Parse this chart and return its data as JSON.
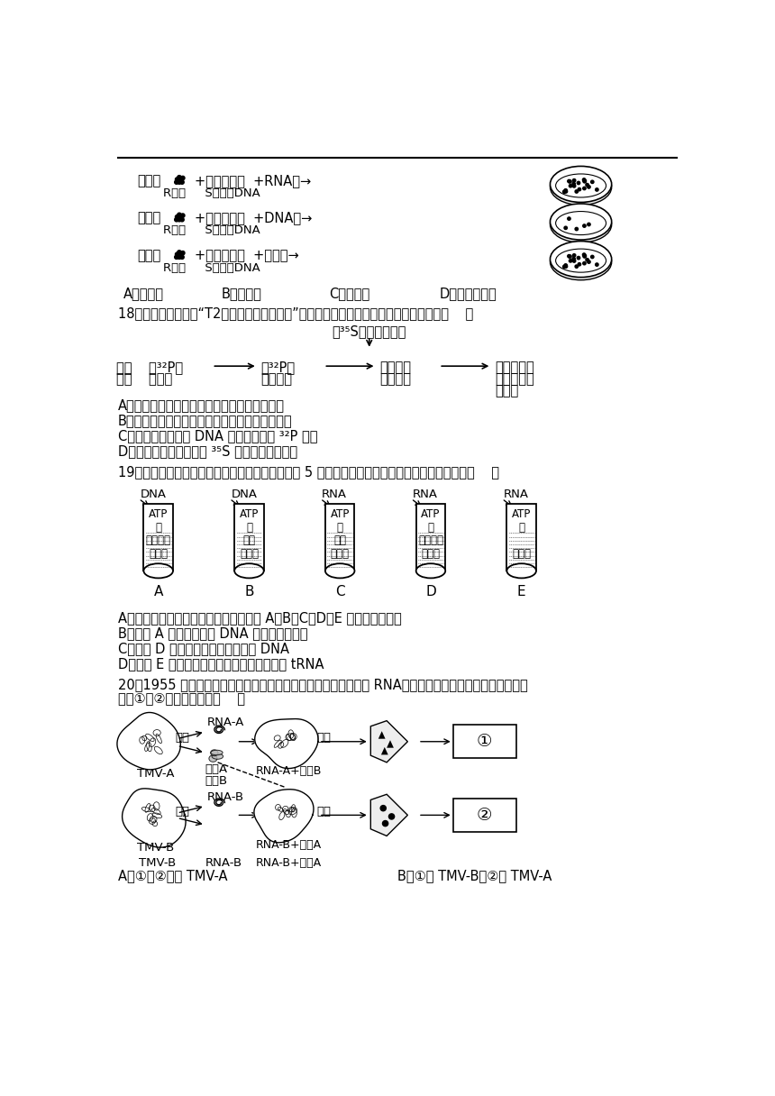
{
  "bg_color": "#ffffff",
  "top_line": true,
  "q18_text": "18．某实验小组模拟“T2噬菌体侵染细菌实验”做了如图所示的实验，下列说法错误的是（　　）",
  "tube_labels": [
    "A",
    "B",
    "C",
    "D",
    "E"
  ],
  "tube_top_texts": [
    "DNA",
    "DNA",
    "RNA",
    "RNA",
    "RNA"
  ],
  "tube_contents": [
    [
      "ATP",
      "酶",
      "脱氧核糖",
      "核苷酸"
    ],
    [
      "ATP",
      "酶",
      "核糖",
      "核苷酸"
    ],
    [
      "ATP",
      "酶",
      "核糖",
      "核苷酸"
    ],
    [
      "ATP",
      "酶",
      "脱氧核糖",
      "核苷酸"
    ],
    [
      "ATP",
      "酶",
      "",
      "氨基酸"
    ]
  ]
}
